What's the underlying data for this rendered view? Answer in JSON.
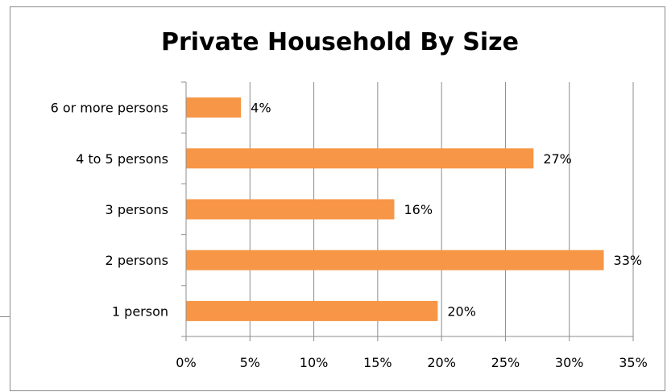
{
  "chart_data": {
    "type": "bar",
    "orientation": "horizontal",
    "title": "Private Household By Size",
    "categories": [
      "6 or more persons",
      "4 to 5 persons",
      "3 persons",
      "2 persons",
      "1 person"
    ],
    "values": [
      4.3,
      27.2,
      16.3,
      32.7,
      19.7
    ],
    "data_labels": [
      "4%",
      "27%",
      "16%",
      "33%",
      "20%"
    ],
    "xlim": [
      0,
      35
    ],
    "x_ticks": [
      0,
      5,
      10,
      15,
      20,
      25,
      30,
      35
    ],
    "x_tick_labels": [
      "0%",
      "5%",
      "10%",
      "15%",
      "20%",
      "25%",
      "30%",
      "35%"
    ],
    "bar_color": "#F79646",
    "grid": "vertical",
    "legend": "none"
  }
}
